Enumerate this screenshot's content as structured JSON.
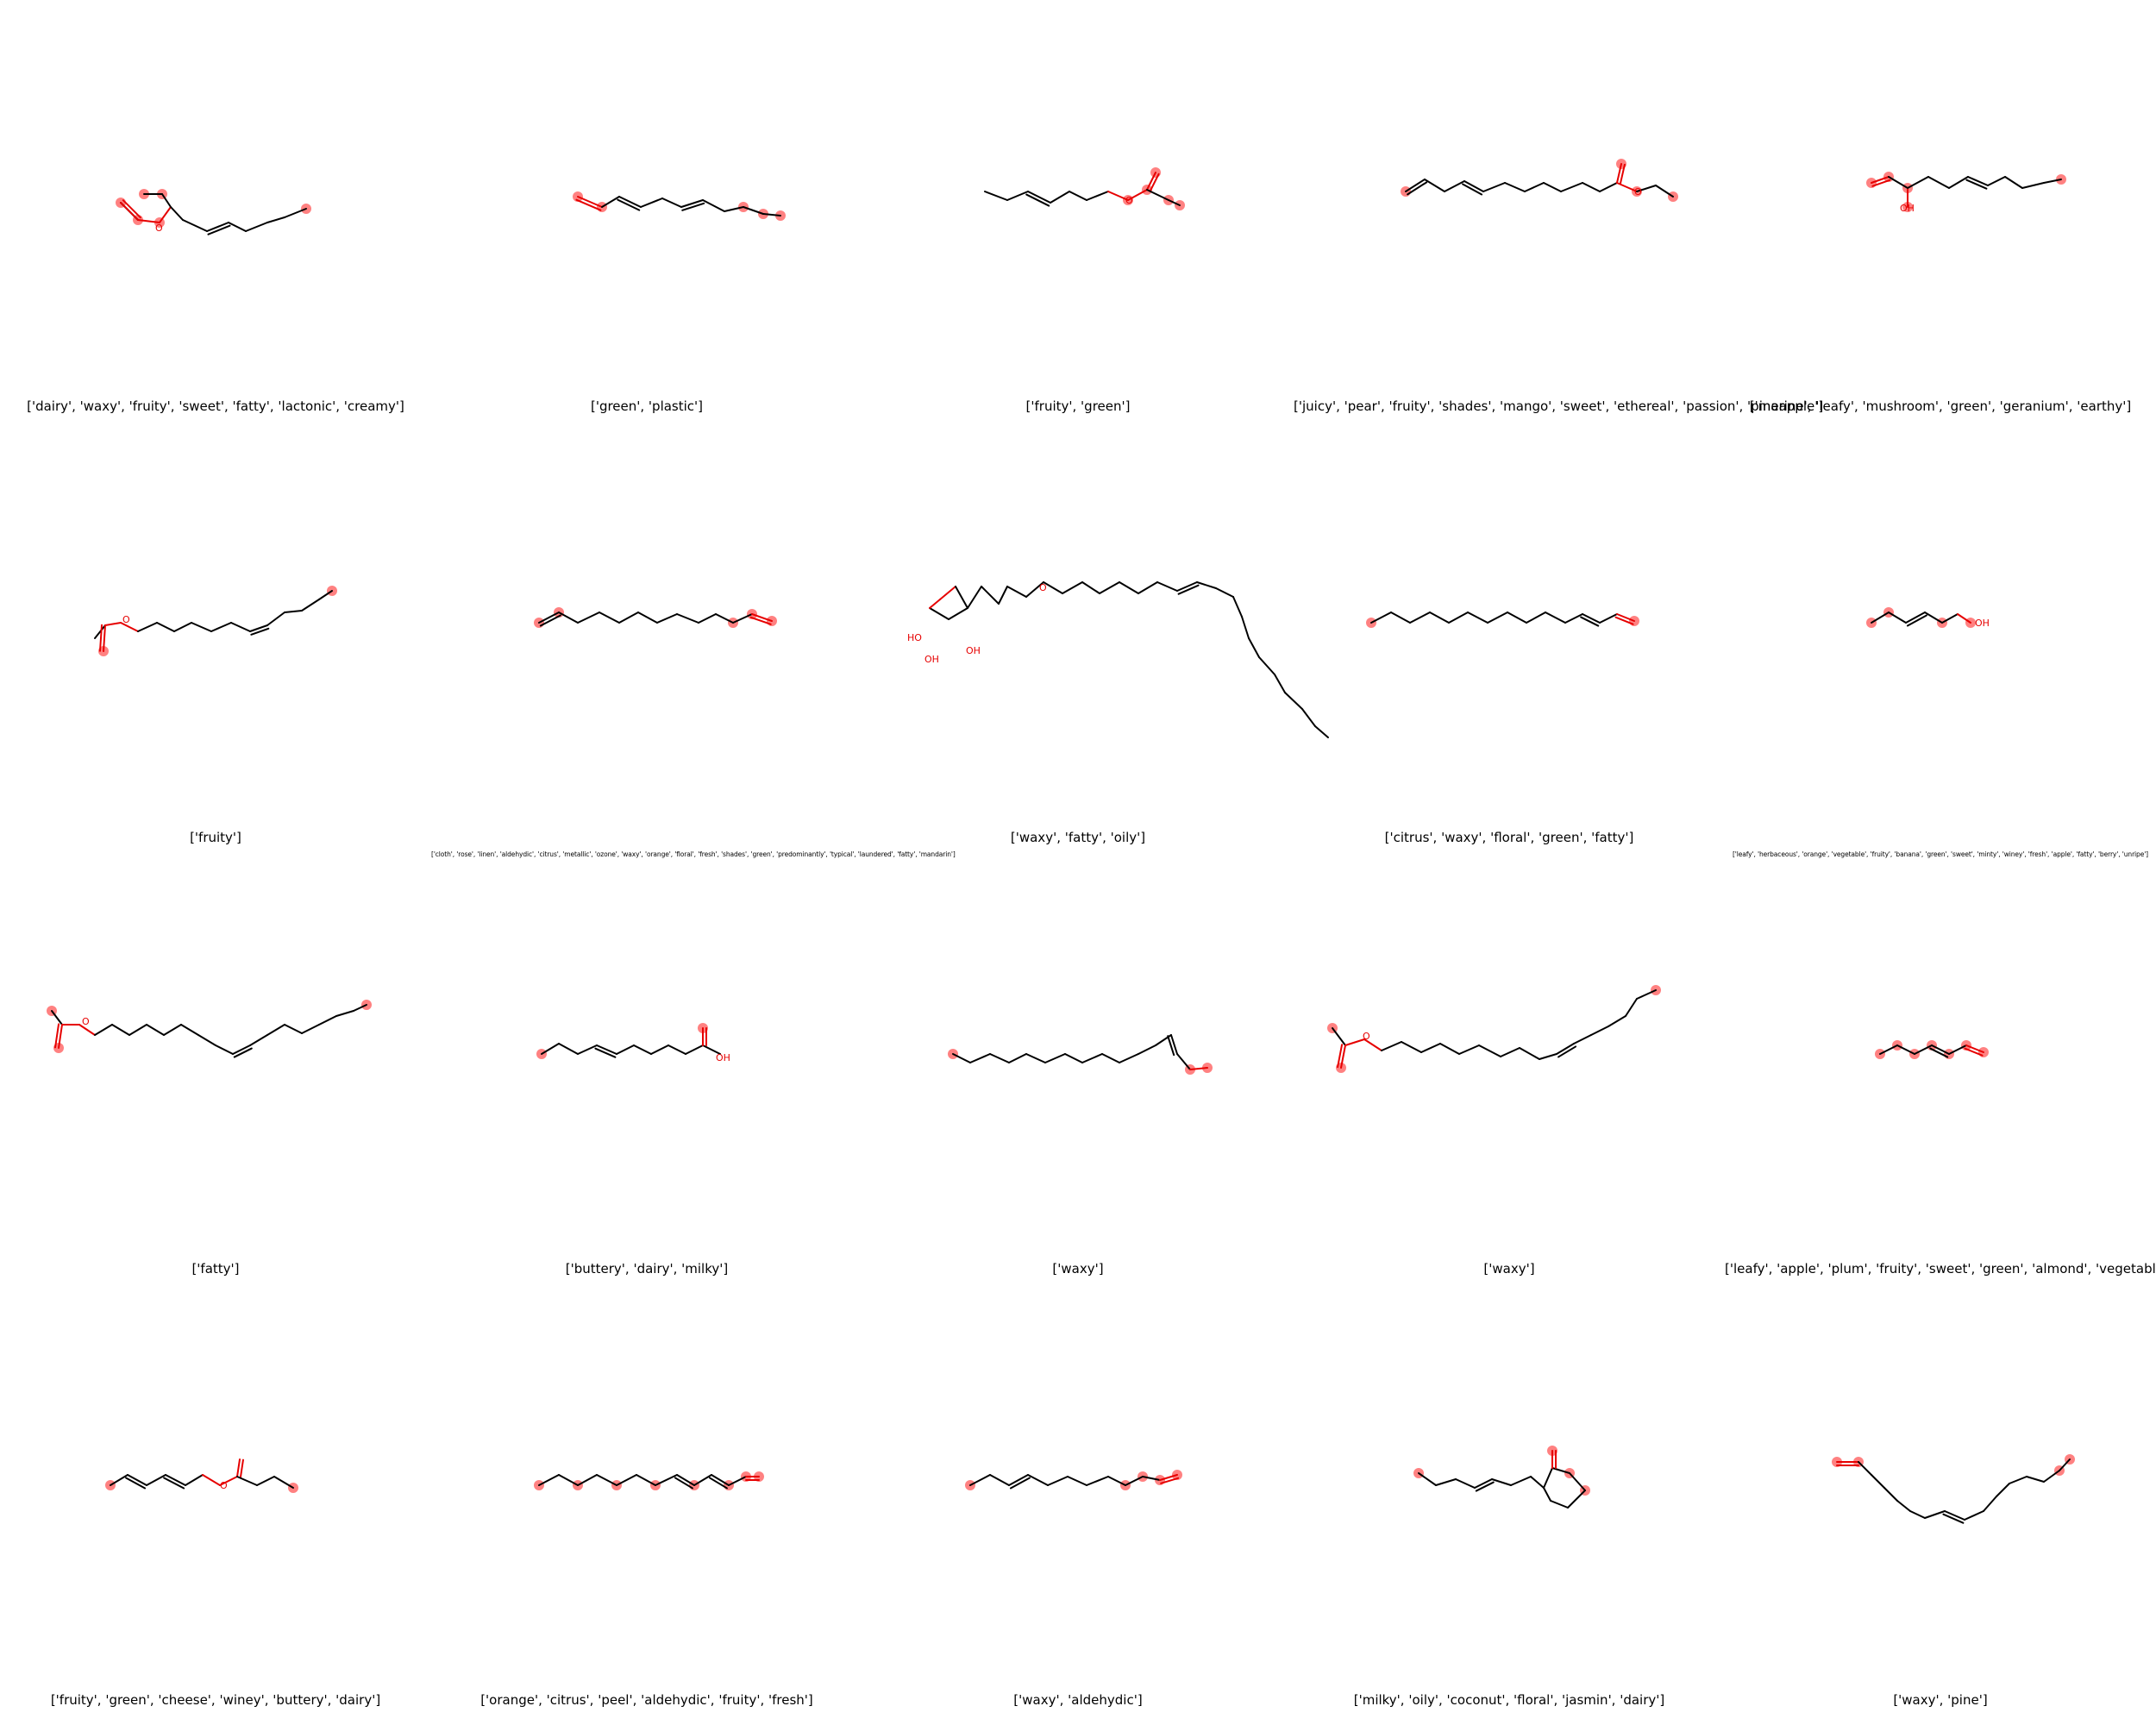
{
  "colors": {
    "bond": "#000000",
    "heteroatom": "#e60000",
    "highlight": "#ff6b6b"
  },
  "molecules": [
    {
      "label": "['dairy', 'waxy', 'fruity', 'sweet', 'fatty', 'lactonic', 'creamy']"
    },
    {
      "label": "['green', 'plastic']"
    },
    {
      "label": "['fruity', 'green']"
    },
    {
      "label": "['juicy', 'pear', 'fruity', 'shades', 'mango', 'sweet', 'ethereal', 'passion', 'pineapple']"
    },
    {
      "label": "['marine', 'leafy', 'mushroom', 'green', 'geranium', 'earthy']"
    },
    {
      "label": "['fruity']"
    },
    {
      "label": "['cloth', 'rose', 'linen', 'aldehydic', 'citrus', 'metallic', 'ozone', 'waxy', 'orange', 'floral', 'fresh', 'shades', 'green', 'predominantly', 'typical', 'laundered', 'fatty', 'mandarin']"
    },
    {
      "label": "['waxy', 'fatty', 'oily']"
    },
    {
      "label": "['citrus', 'waxy', 'floral', 'green', 'fatty']"
    },
    {
      "label": "['leafy', 'herbaceous', 'orange', 'vegetable', 'fruity', 'banana', 'green', 'sweet', 'minty', 'winey', 'fresh', 'apple', 'fatty', 'berry', 'unripe']"
    },
    {
      "label": "['fatty']"
    },
    {
      "label": "['buttery', 'dairy', 'milky']"
    },
    {
      "label": "['waxy']"
    },
    {
      "label": "['waxy']"
    },
    {
      "label": "['leafy', 'apple', 'plum', 'fruity', 'sweet', 'green', 'almond', 'vegetable']"
    },
    {
      "label": "['fruity', 'green', 'cheese', 'winey', 'buttery', 'dairy']"
    },
    {
      "label": "['orange', 'citrus', 'peel', 'aldehydic', 'fruity', 'fresh']"
    },
    {
      "label": "['waxy', 'aldehydic']"
    },
    {
      "label": "['milky', 'oily', 'coconut', 'floral', 'jasmin', 'dairy']"
    },
    {
      "label": "['waxy', 'pine']"
    }
  ]
}
